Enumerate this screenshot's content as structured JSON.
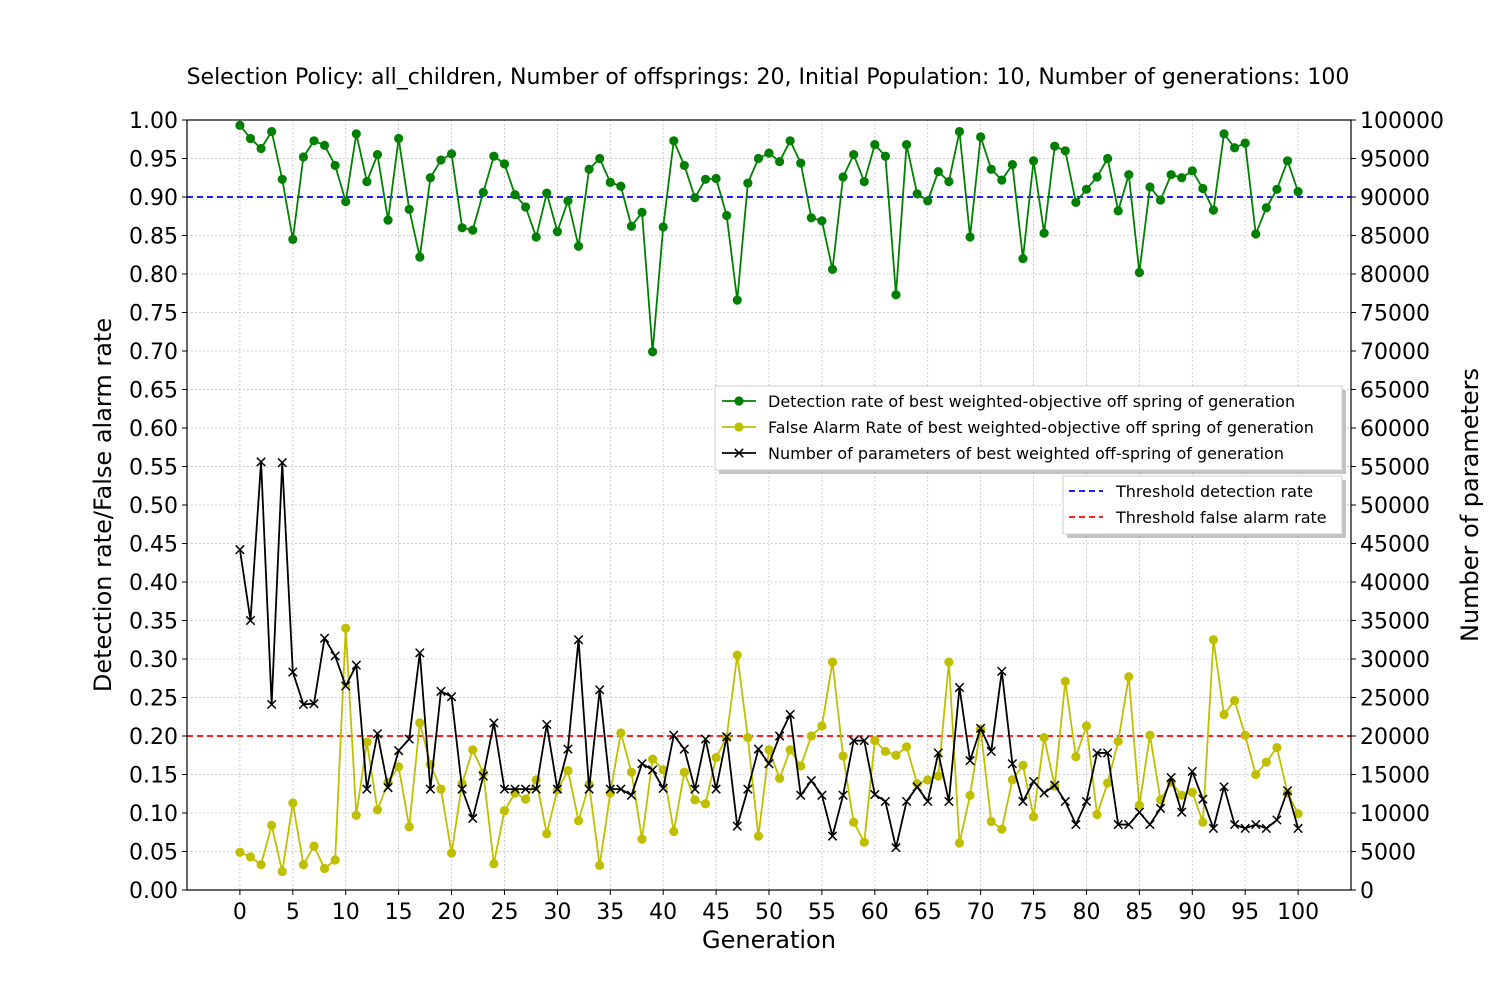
{
  "chart_data": {
    "type": "line",
    "title": "Selection Policy: all_children, Number of offsprings: 20, Initial Population: 10, Number of generations: 100",
    "xlabel": "Generation",
    "ylabel_left": "Detection rate/False alarm rate",
    "ylabel_right": "Number of parameters",
    "xlim": [
      -5,
      105
    ],
    "ylim_left": [
      0,
      1
    ],
    "ylim_right": [
      0,
      100000
    ],
    "x_ticks": [
      0,
      5,
      10,
      15,
      20,
      25,
      30,
      35,
      40,
      45,
      50,
      55,
      60,
      65,
      70,
      75,
      80,
      85,
      90,
      95,
      100
    ],
    "y_ticks_left": [
      "0.00",
      "0.05",
      "0.10",
      "0.15",
      "0.20",
      "0.25",
      "0.30",
      "0.35",
      "0.40",
      "0.45",
      "0.50",
      "0.55",
      "0.60",
      "0.65",
      "0.70",
      "0.75",
      "0.80",
      "0.85",
      "0.90",
      "0.95",
      "1.00"
    ],
    "y_ticks_right": [
      "0",
      "5000",
      "10000",
      "15000",
      "20000",
      "25000",
      "30000",
      "35000",
      "40000",
      "45000",
      "50000",
      "55000",
      "60000",
      "65000",
      "70000",
      "75000",
      "80000",
      "85000",
      "90000",
      "95000",
      "100000"
    ],
    "grid": true,
    "x": [
      0,
      1,
      2,
      3,
      4,
      5,
      6,
      7,
      8,
      9,
      10,
      11,
      12,
      13,
      14,
      15,
      16,
      17,
      18,
      19,
      20,
      21,
      22,
      23,
      24,
      25,
      26,
      27,
      28,
      29,
      30,
      31,
      32,
      33,
      34,
      35,
      36,
      37,
      38,
      39,
      40,
      41,
      42,
      43,
      44,
      45,
      46,
      47,
      48,
      49,
      50,
      51,
      52,
      53,
      54,
      55,
      56,
      57,
      58,
      59,
      60,
      61,
      62,
      63,
      64,
      65,
      66,
      67,
      68,
      69,
      70,
      71,
      72,
      73,
      74,
      75,
      76,
      77,
      78,
      79,
      80,
      81,
      82,
      83,
      84,
      85,
      86,
      87,
      88,
      89,
      90,
      91,
      92,
      93,
      94,
      95,
      96,
      97,
      98,
      99,
      100
    ],
    "series": [
      {
        "name": "Detection rate of best weighted-objective off spring of generation",
        "axis": "left",
        "color": "#008000",
        "marker": "circle",
        "values": [
          0.993,
          0.976,
          0.963,
          0.985,
          0.923,
          0.845,
          0.952,
          0.973,
          0.967,
          0.941,
          0.894,
          0.982,
          0.92,
          0.955,
          0.87,
          0.976,
          0.884,
          0.822,
          0.925,
          0.948,
          0.956,
          0.86,
          0.857,
          0.906,
          0.953,
          0.943,
          0.903,
          0.887,
          0.848,
          0.905,
          0.855,
          0.895,
          0.836,
          0.936,
          0.95,
          0.919,
          0.914,
          0.862,
          0.88,
          0.699,
          0.861,
          0.973,
          0.941,
          0.899,
          0.923,
          0.924,
          0.876,
          0.766,
          0.918,
          0.95,
          0.957,
          0.946,
          0.973,
          0.944,
          0.873,
          0.869,
          0.806,
          0.926,
          0.955,
          0.92,
          0.968,
          0.953,
          0.773,
          0.968,
          0.904,
          0.895,
          0.933,
          0.92,
          0.985,
          0.848,
          0.978,
          0.936,
          0.922,
          0.942,
          0.82,
          0.947,
          0.853,
          0.966,
          0.96,
          0.893,
          0.91,
          0.926,
          0.95,
          0.882,
          0.929,
          0.802,
          0.913,
          0.896,
          0.929,
          0.925,
          0.934,
          0.911,
          0.883,
          0.982,
          0.964,
          0.97,
          0.852,
          0.886,
          0.91,
          0.947,
          0.907
        ]
      },
      {
        "name": "False Alarm Rate of best weighted-objective off spring of generation",
        "axis": "left",
        "color": "#bfbf00",
        "marker": "circle",
        "values": [
          0.049,
          0.043,
          0.033,
          0.084,
          0.024,
          0.113,
          0.033,
          0.057,
          0.028,
          0.039,
          0.34,
          0.097,
          0.192,
          0.104,
          0.14,
          0.16,
          0.082,
          0.217,
          0.163,
          0.131,
          0.048,
          0.138,
          0.182,
          0.152,
          0.034,
          0.103,
          0.126,
          0.118,
          0.143,
          0.073,
          0.13,
          0.155,
          0.09,
          0.137,
          0.032,
          0.126,
          0.204,
          0.153,
          0.066,
          0.17,
          0.156,
          0.076,
          0.153,
          0.117,
          0.112,
          0.172,
          0.198,
          0.305,
          0.198,
          0.07,
          0.182,
          0.145,
          0.182,
          0.161,
          0.2,
          0.213,
          0.296,
          0.174,
          0.088,
          0.062,
          0.194,
          0.18,
          0.175,
          0.186,
          0.138,
          0.143,
          0.148,
          0.296,
          0.061,
          0.123,
          0.209,
          0.089,
          0.079,
          0.143,
          0.162,
          0.095,
          0.198,
          0.135,
          0.271,
          0.173,
          0.213,
          0.098,
          0.139,
          0.193,
          0.277,
          0.11,
          0.201,
          0.117,
          0.14,
          0.123,
          0.127,
          0.088,
          0.325,
          0.228,
          0.246,
          0.201,
          0.15,
          0.166,
          0.185,
          0.126,
          0.099
        ]
      },
      {
        "name": "Number of parameters of best weighted off-spring of generation",
        "axis": "right",
        "color": "#000000",
        "marker": "x",
        "values": [
          44200,
          35000,
          55600,
          24100,
          55500,
          28300,
          24100,
          24200,
          32700,
          30400,
          26500,
          29200,
          13100,
          20300,
          13300,
          18100,
          19600,
          30800,
          13100,
          25800,
          25100,
          13100,
          9300,
          14800,
          21700,
          13100,
          13100,
          13100,
          13100,
          21500,
          13100,
          18300,
          32500,
          13100,
          26000,
          13100,
          13100,
          12300,
          16400,
          15600,
          13200,
          20100,
          18300,
          13100,
          19600,
          13100,
          19900,
          8300,
          13100,
          18300,
          16400,
          20000,
          22800,
          12300,
          14200,
          12300,
          7000,
          12300,
          19400,
          19400,
          12400,
          11500,
          5500,
          11500,
          13400,
          11500,
          17800,
          11500,
          26300,
          16800,
          21000,
          18000,
          28400,
          16400,
          11500,
          14100,
          12600,
          13600,
          11500,
          8500,
          11500,
          17800,
          17800,
          8500,
          8500,
          10100,
          8500,
          10600,
          14600,
          10100,
          15400,
          11800,
          8000,
          13400,
          8500,
          8000,
          8500,
          8000,
          9100,
          12900,
          8000
        ]
      }
    ],
    "thresholds": [
      {
        "name": "Threshold detection rate",
        "value": 0.9,
        "color": "#0000ff"
      },
      {
        "name": "Threshold false alarm rate",
        "value": 0.2,
        "color": "#ff0000"
      }
    ]
  }
}
